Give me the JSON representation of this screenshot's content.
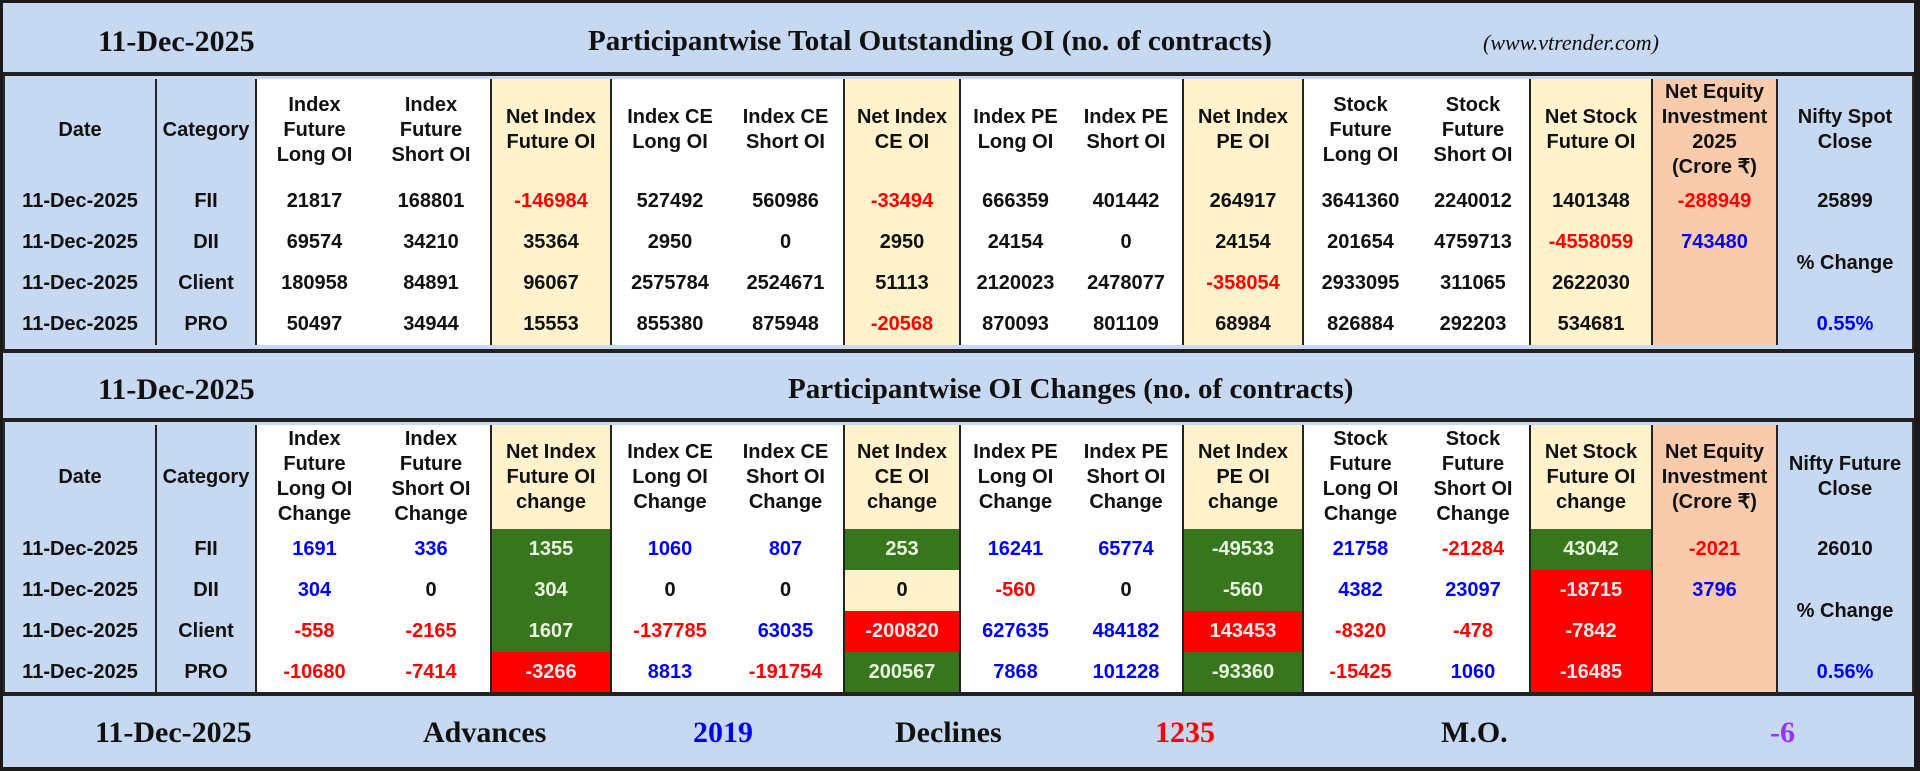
{
  "section1": {
    "date": "11-Dec-2025",
    "title": "Participantwise Total Outstanding OI (no. of contracts)",
    "site": "(www.vtrender.com)"
  },
  "table1": {
    "headers": [
      "Date",
      "Category",
      "Index\nFuture\nLong OI",
      "Index\nFuture\nShort OI",
      "Net Index\nFuture OI",
      "Index CE\nLong OI",
      "Index CE\nShort OI",
      "Net Index\nCE OI",
      "Index PE\nLong OI",
      "Index PE\nShort OI",
      "Net Index\nPE OI",
      "Stock\nFuture\nLong OI",
      "Stock\nFuture\nShort OI",
      "Net Stock\nFuture OI",
      "Net Equity\nInvestment\n2025\n(Crore ₹)",
      "Nifty Spot\nClose"
    ],
    "rows": [
      {
        "date": "11-Dec-2025",
        "category": "FII",
        "cells": [
          "21817",
          "168801",
          "-146984",
          "527492",
          "560986",
          "-33494",
          "666359",
          "401442",
          "264917",
          "3641360",
          "2240012",
          "1401348",
          "-288949"
        ],
        "tones": [
          "k",
          "k",
          "r",
          "k",
          "k",
          "r",
          "k",
          "k",
          "k",
          "k",
          "k",
          "k",
          "r"
        ]
      },
      {
        "date": "11-Dec-2025",
        "category": "DII",
        "cells": [
          "69574",
          "34210",
          "35364",
          "2950",
          "0",
          "2950",
          "24154",
          "0",
          "24154",
          "201654",
          "4759713",
          "-4558059",
          "743480"
        ],
        "tones": [
          "k",
          "k",
          "k",
          "k",
          "k",
          "k",
          "k",
          "k",
          "k",
          "k",
          "k",
          "r",
          "b"
        ]
      },
      {
        "date": "11-Dec-2025",
        "category": "Client",
        "cells": [
          "180958",
          "84891",
          "96067",
          "2575784",
          "2524671",
          "51113",
          "2120023",
          "2478077",
          "-358054",
          "2933095",
          "311065",
          "2622030",
          ""
        ],
        "tones": [
          "k",
          "k",
          "k",
          "k",
          "k",
          "k",
          "k",
          "k",
          "r",
          "k",
          "k",
          "k",
          "k"
        ]
      },
      {
        "date": "11-Dec-2025",
        "category": "PRO",
        "cells": [
          "50497",
          "34944",
          "15553",
          "855380",
          "875948",
          "-20568",
          "870093",
          "801109",
          "68984",
          "826884",
          "292203",
          "534681",
          ""
        ],
        "tones": [
          "k",
          "k",
          "k",
          "k",
          "k",
          "r",
          "k",
          "k",
          "k",
          "k",
          "k",
          "k",
          "k"
        ]
      }
    ],
    "nifty": {
      "close": "25899",
      "change_label": "% Change",
      "change": "0.55%"
    }
  },
  "section2": {
    "date": "11-Dec-2025",
    "title": "Participantwise OI Changes (no. of contracts)"
  },
  "table2": {
    "headers": [
      "Date",
      "Category",
      "Index\nFuture\nLong OI\nChange",
      "Index\nFuture\nShort OI\nChange",
      "Net Index\nFuture OI\nchange",
      "Index CE\nLong OI\nChange",
      "Index CE\nShort OI\nChange",
      "Net Index\nCE OI\nchange",
      "Index PE\nLong OI\nChange",
      "Index PE\nShort OI\nChange",
      "Net Index\nPE OI\nchange",
      "Stock\nFuture\nLong OI\nChange",
      "Stock\nFuture\nShort OI\nChange",
      "Net Stock\nFuture OI\nchange",
      "Net Equity\nInvestment\n(Crore ₹)",
      "Nifty Future\nClose"
    ],
    "rows": [
      {
        "date": "11-Dec-2025",
        "category": "FII",
        "cells": [
          "1691",
          "336",
          "1355",
          "1060",
          "807",
          "253",
          "16241",
          "65774",
          "-49533",
          "21758",
          "-21284",
          "43042",
          "-2021"
        ],
        "tones": [
          "b",
          "b",
          "g",
          "b",
          "b",
          "g",
          "b",
          "b",
          "g",
          "b",
          "r",
          "g",
          "r"
        ]
      },
      {
        "date": "11-Dec-2025",
        "category": "DII",
        "cells": [
          "304",
          "0",
          "304",
          "0",
          "0",
          "0",
          "-560",
          "0",
          "-560",
          "4382",
          "23097",
          "-18715",
          "3796"
        ],
        "tones": [
          "b",
          "k",
          "g",
          "k",
          "k",
          "k",
          "r",
          "k",
          "g",
          "b",
          "b",
          "R",
          "b"
        ]
      },
      {
        "date": "11-Dec-2025",
        "category": "Client",
        "cells": [
          "-558",
          "-2165",
          "1607",
          "-137785",
          "63035",
          "-200820",
          "627635",
          "484182",
          "143453",
          "-8320",
          "-478",
          "-7842",
          ""
        ],
        "tones": [
          "r",
          "r",
          "g",
          "r",
          "b",
          "R",
          "b",
          "b",
          "R",
          "r",
          "r",
          "R",
          "k"
        ]
      },
      {
        "date": "11-Dec-2025",
        "category": "PRO",
        "cells": [
          "-10680",
          "-7414",
          "-3266",
          "8813",
          "-191754",
          "200567",
          "7868",
          "101228",
          "-93360",
          "-15425",
          "1060",
          "-16485",
          ""
        ],
        "tones": [
          "r",
          "r",
          "R",
          "b",
          "r",
          "g",
          "b",
          "b",
          "g",
          "r",
          "b",
          "R",
          "k"
        ]
      }
    ],
    "nifty": {
      "close": "26010",
      "change_label": "% Change",
      "change": "0.56%"
    }
  },
  "footer": {
    "date": "11-Dec-2025",
    "advances_label": "Advances",
    "advances": "2019",
    "declines_label": "Declines",
    "declines": "1235",
    "mo_label": "M.O.",
    "mo": "-6"
  },
  "colors": {
    "banner": "#c6d9f1",
    "cream": "#fff2cc",
    "orange": "#f8cbad",
    "positive_bg": "#38761d",
    "negative_bg": "#ff0000",
    "positive_text": "#0000ff",
    "negative_text": "#ff0000",
    "mo_text": "#9933ff"
  }
}
